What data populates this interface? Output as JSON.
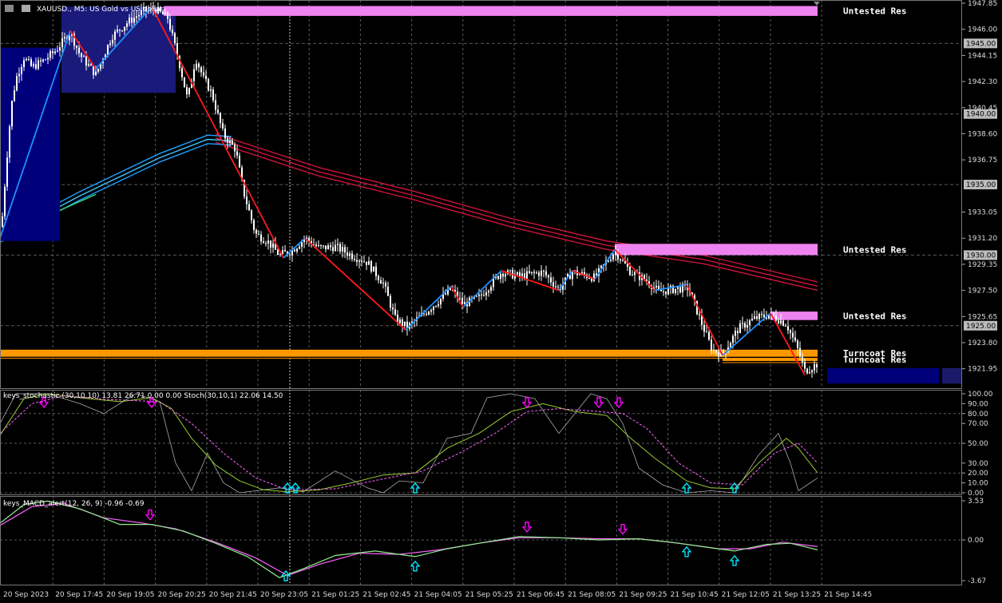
{
  "header": {
    "symbol_title": "XAUUSD., M5:  US Gold vs US dollar",
    "stoch_title": "keys_stochastic (30,10,10) 13.81 26.71 0.00 0.00 Stoch(30,10,1) 22.06 14.50",
    "macd_title": "keys_MACD_alert(12, 26, 9) -0.96 -0.69"
  },
  "colors": {
    "background": "#000000",
    "grid": "#5a5a5a",
    "bull_zigzag": "#1e90ff",
    "bear_zigzag": "#ff1a1a",
    "ma_red": "#dc143c",
    "ma_blue": "#00bfff",
    "zone_pink": "#ee82ee",
    "zone_orange": "#ff9800",
    "zone_navy": "#00007a",
    "macd_main": "#90ee90",
    "macd_signal": "#ff66ff",
    "stoch_main": "#9acd32",
    "stoch_signal": "#ff66ff",
    "arrow_up": "#00e5ff",
    "arrow_down": "#ff00ff"
  },
  "chart_data": [
    {
      "type": "candlestick",
      "ylim": [
        1920.8,
        1947.85
      ],
      "price_ticks": [
        "1947.85",
        "1946.00",
        "1944.15",
        "1942.30",
        "1940.45",
        "1938.60",
        "1936.75",
        "1933.05",
        "1931.20",
        "1929.35",
        "1927.50",
        "1925.65",
        "1923.80",
        "1921.95"
      ],
      "highlighted_levels": [
        "1945.00",
        "1940.00",
        "1935.00",
        "1930.00",
        "1925.00"
      ],
      "time_labels": [
        "20 Sep 2023",
        "20 Sep 17:45",
        "20 Sep 19:05",
        "20 Sep 20:25",
        "20 Sep 21:45",
        "20 Sep 23:05",
        "21 Sep 01:25",
        "21 Sep 02:45",
        "21 Sep 04:05",
        "21 Sep 05:25",
        "21 Sep 06:45",
        "21 Sep 08:05",
        "21 Sep 09:25",
        "21 Sep 10:45",
        "21 Sep 12:05",
        "21 Sep 13:25",
        "21 Sep 14:45"
      ],
      "zigzag_points": [
        [
          0,
          1931.2
        ],
        [
          88,
          1945.9
        ],
        [
          120,
          1943.2
        ],
        [
          190,
          1947.6
        ],
        [
          355,
          1929.8
        ],
        [
          382,
          1931.2
        ],
        [
          508,
          1924.7
        ],
        [
          565,
          1927.8
        ],
        [
          580,
          1926.3
        ],
        [
          628,
          1928.9
        ],
        [
          700,
          1927.5
        ],
        [
          717,
          1928.9
        ],
        [
          745,
          1928.3
        ],
        [
          770,
          1930.4
        ],
        [
          820,
          1927.5
        ],
        [
          860,
          1927.9
        ],
        [
          905,
          1922.9
        ],
        [
          965,
          1925.9
        ],
        [
          1008,
          1921.5
        ]
      ],
      "price_path": [
        [
          2,
          1932.0
        ],
        [
          8,
          1936.5
        ],
        [
          14,
          1940.5
        ],
        [
          20,
          1942.5
        ],
        [
          30,
          1944.0
        ],
        [
          40,
          1943.3
        ],
        [
          55,
          1943.8
        ],
        [
          70,
          1944.5
        ],
        [
          88,
          1945.8
        ],
        [
          100,
          1944.2
        ],
        [
          120,
          1942.8
        ],
        [
          140,
          1945.5
        ],
        [
          160,
          1946.5
        ],
        [
          180,
          1947.3
        ],
        [
          195,
          1947.4
        ],
        [
          210,
          1946.8
        ],
        [
          225,
          1943.5
        ],
        [
          235,
          1941.0
        ],
        [
          245,
          1944.0
        ],
        [
          255,
          1942.5
        ],
        [
          265,
          1941.5
        ],
        [
          280,
          1938.5
        ],
        [
          295,
          1937.5
        ],
        [
          305,
          1934.5
        ],
        [
          320,
          1931.5
        ],
        [
          335,
          1931.0
        ],
        [
          350,
          1930.0
        ],
        [
          365,
          1930.3
        ],
        [
          382,
          1931.2
        ],
        [
          400,
          1930.5
        ],
        [
          420,
          1930.6
        ],
        [
          440,
          1930.0
        ],
        [
          460,
          1929.5
        ],
        [
          480,
          1928.0
        ],
        [
          495,
          1925.5
        ],
        [
          510,
          1924.9
        ],
        [
          530,
          1925.8
        ],
        [
          550,
          1926.8
        ],
        [
          565,
          1927.6
        ],
        [
          580,
          1926.5
        ],
        [
          600,
          1927.0
        ],
        [
          628,
          1928.8
        ],
        [
          650,
          1928.5
        ],
        [
          680,
          1928.8
        ],
        [
          700,
          1927.6
        ],
        [
          717,
          1928.8
        ],
        [
          745,
          1928.4
        ],
        [
          770,
          1930.3
        ],
        [
          790,
          1928.8
        ],
        [
          810,
          1928.2
        ],
        [
          825,
          1927.4
        ],
        [
          845,
          1927.6
        ],
        [
          862,
          1927.7
        ],
        [
          880,
          1925.0
        ],
        [
          892,
          1923.3
        ],
        [
          905,
          1923.0
        ],
        [
          925,
          1924.8
        ],
        [
          945,
          1925.5
        ],
        [
          965,
          1925.8
        ],
        [
          985,
          1925.1
        ],
        [
          998,
          1923.5
        ],
        [
          1008,
          1921.8
        ],
        [
          1015,
          1922.0
        ],
        [
          1024,
          1922.3
        ]
      ],
      "zones": [
        {
          "kind": "res",
          "color": "pink",
          "from_x": 205,
          "price_top": 1947.65,
          "price_bottom": 1946.95,
          "label": "Untested Res"
        },
        {
          "kind": "res",
          "color": "pink",
          "from_x": 770,
          "price_top": 1930.8,
          "price_bottom": 1930.0,
          "label": "Untested Res"
        },
        {
          "kind": "res",
          "color": "pink",
          "from_x": 965,
          "price_top": 1926.0,
          "price_bottom": 1925.4,
          "label": "Untested Res"
        },
        {
          "kind": "turncoat",
          "color": "orange",
          "from_x": 0,
          "price_top": 1923.3,
          "price_bottom": 1922.8,
          "label": "Turncoat Res"
        },
        {
          "kind": "turncoat",
          "color": "orange",
          "from_x": 905,
          "price_top": 1922.7,
          "price_bottom": 1922.5,
          "label": "Turncoat Res"
        }
      ],
      "ma_red_paths": [
        [
          [
            270,
            1938.6
          ],
          [
            400,
            1936.2
          ],
          [
            520,
            1934.5
          ],
          [
            640,
            1932.6
          ],
          [
            760,
            1931.0
          ],
          [
            880,
            1930.0
          ],
          [
            1024,
            1928.1
          ]
        ],
        [
          [
            270,
            1938.3
          ],
          [
            400,
            1935.9
          ],
          [
            520,
            1934.2
          ],
          [
            640,
            1932.3
          ],
          [
            760,
            1930.7
          ],
          [
            880,
            1929.7
          ],
          [
            1024,
            1927.8
          ]
        ],
        [
          [
            270,
            1938.0
          ],
          [
            400,
            1935.6
          ],
          [
            520,
            1933.9
          ],
          [
            640,
            1932.0
          ],
          [
            760,
            1930.4
          ],
          [
            880,
            1929.4
          ],
          [
            1024,
            1927.5
          ]
        ]
      ],
      "ma_blue_paths": [
        [
          [
            0,
            1931.5
          ],
          [
            100,
            1934.5
          ],
          [
            200,
            1937.2
          ],
          [
            260,
            1938.5
          ],
          [
            290,
            1938.4
          ]
        ],
        [
          [
            0,
            1931.2
          ],
          [
            100,
            1934.2
          ],
          [
            200,
            1936.9
          ],
          [
            260,
            1938.2
          ],
          [
            290,
            1938.1
          ]
        ],
        [
          [
            0,
            1930.9
          ],
          [
            100,
            1933.9
          ],
          [
            200,
            1936.6
          ],
          [
            260,
            1937.9
          ],
          [
            290,
            1937.8
          ]
        ]
      ]
    },
    {
      "type": "line",
      "ylim": [
        0,
        100
      ],
      "tick_labels": [
        "100.00",
        "90.00",
        "80.00",
        "70.00",
        "50.00",
        "30.00",
        "20.00",
        "10.00",
        "0.00"
      ],
      "main": [
        [
          0,
          58
        ],
        [
          30,
          95
        ],
        [
          60,
          100
        ],
        [
          100,
          96
        ],
        [
          150,
          92
        ],
        [
          190,
          96
        ],
        [
          215,
          85
        ],
        [
          240,
          55
        ],
        [
          270,
          28
        ],
        [
          300,
          12
        ],
        [
          330,
          3
        ],
        [
          360,
          1
        ],
        [
          400,
          3
        ],
        [
          440,
          10
        ],
        [
          480,
          18
        ],
        [
          520,
          20
        ],
        [
          560,
          45
        ],
        [
          600,
          60
        ],
        [
          640,
          82
        ],
        [
          680,
          90
        ],
        [
          720,
          82
        ],
        [
          760,
          78
        ],
        [
          790,
          55
        ],
        [
          820,
          35
        ],
        [
          860,
          12
        ],
        [
          890,
          5
        ],
        [
          920,
          4
        ],
        [
          950,
          30
        ],
        [
          985,
          55
        ],
        [
          1000,
          45
        ],
        [
          1024,
          20
        ]
      ],
      "signal": [
        [
          0,
          60
        ],
        [
          40,
          90
        ],
        [
          80,
          98
        ],
        [
          140,
          94
        ],
        [
          200,
          92
        ],
        [
          240,
          70
        ],
        [
          280,
          40
        ],
        [
          320,
          15
        ],
        [
          360,
          3
        ],
        [
          420,
          4
        ],
        [
          480,
          14
        ],
        [
          530,
          22
        ],
        [
          580,
          42
        ],
        [
          620,
          60
        ],
        [
          660,
          82
        ],
        [
          700,
          85
        ],
        [
          750,
          82
        ],
        [
          780,
          80
        ],
        [
          810,
          65
        ],
        [
          850,
          30
        ],
        [
          890,
          10
        ],
        [
          930,
          8
        ],
        [
          970,
          40
        ],
        [
          1000,
          50
        ],
        [
          1024,
          30
        ]
      ],
      "raw": [
        [
          0,
          70
        ],
        [
          20,
          100
        ],
        [
          60,
          100
        ],
        [
          100,
          90
        ],
        [
          130,
          80
        ],
        [
          170,
          100
        ],
        [
          200,
          92
        ],
        [
          220,
          30
        ],
        [
          240,
          2
        ],
        [
          260,
          40
        ],
        [
          280,
          10
        ],
        [
          300,
          0
        ],
        [
          350,
          5
        ],
        [
          380,
          1
        ],
        [
          420,
          22
        ],
        [
          460,
          5
        ],
        [
          480,
          0
        ],
        [
          500,
          12
        ],
        [
          530,
          10
        ],
        [
          560,
          55
        ],
        [
          590,
          60
        ],
        [
          610,
          96
        ],
        [
          640,
          100
        ],
        [
          670,
          95
        ],
        [
          700,
          60
        ],
        [
          720,
          80
        ],
        [
          740,
          100
        ],
        [
          760,
          95
        ],
        [
          780,
          70
        ],
        [
          800,
          25
        ],
        [
          830,
          8
        ],
        [
          860,
          0
        ],
        [
          890,
          2
        ],
        [
          920,
          0
        ],
        [
          950,
          38
        ],
        [
          975,
          60
        ],
        [
          990,
          30
        ],
        [
          1000,
          2
        ],
        [
          1024,
          15
        ]
      ],
      "arrows_up": [
        360,
        370,
        520,
        860,
        920
      ],
      "arrows_down": [
        55,
        190,
        660,
        750,
        775
      ]
    },
    {
      "type": "line",
      "ylim": [
        -3.67,
        3.53
      ],
      "tick_labels": [
        "3.53",
        "0.00",
        "-3.67"
      ],
      "macd": [
        [
          0,
          1.5
        ],
        [
          30,
          3.2
        ],
        [
          60,
          3.5
        ],
        [
          100,
          2.8
        ],
        [
          150,
          1.4
        ],
        [
          190,
          1.4
        ],
        [
          230,
          0.8
        ],
        [
          270,
          -0.3
        ],
        [
          310,
          -1.5
        ],
        [
          350,
          -3.4
        ],
        [
          380,
          -2.6
        ],
        [
          420,
          -1.4
        ],
        [
          470,
          -1.0
        ],
        [
          520,
          -1.5
        ],
        [
          560,
          -0.8
        ],
        [
          600,
          -0.3
        ],
        [
          650,
          0.3
        ],
        [
          700,
          0.2
        ],
        [
          750,
          0.0
        ],
        [
          800,
          0.1
        ],
        [
          840,
          -0.2
        ],
        [
          880,
          -0.6
        ],
        [
          920,
          -1.0
        ],
        [
          960,
          -0.4
        ],
        [
          990,
          -0.3
        ],
        [
          1024,
          -0.9
        ]
      ],
      "signal": [
        [
          0,
          1.3
        ],
        [
          40,
          3.0
        ],
        [
          80,
          3.3
        ],
        [
          130,
          2.0
        ],
        [
          180,
          1.5
        ],
        [
          220,
          1.0
        ],
        [
          270,
          -0.2
        ],
        [
          320,
          -1.6
        ],
        [
          360,
          -3.2
        ],
        [
          400,
          -2.2
        ],
        [
          450,
          -1.2
        ],
        [
          500,
          -1.3
        ],
        [
          550,
          -0.9
        ],
        [
          600,
          -0.3
        ],
        [
          650,
          0.2
        ],
        [
          700,
          0.2
        ],
        [
          750,
          0.1
        ],
        [
          800,
          0.1
        ],
        [
          850,
          -0.3
        ],
        [
          900,
          -0.8
        ],
        [
          940,
          -0.8
        ],
        [
          980,
          -0.2
        ],
        [
          1024,
          -0.6
        ]
      ],
      "arrows_up": [
        358,
        520,
        860,
        920
      ],
      "arrows_down": [
        188,
        660,
        780
      ]
    }
  ]
}
